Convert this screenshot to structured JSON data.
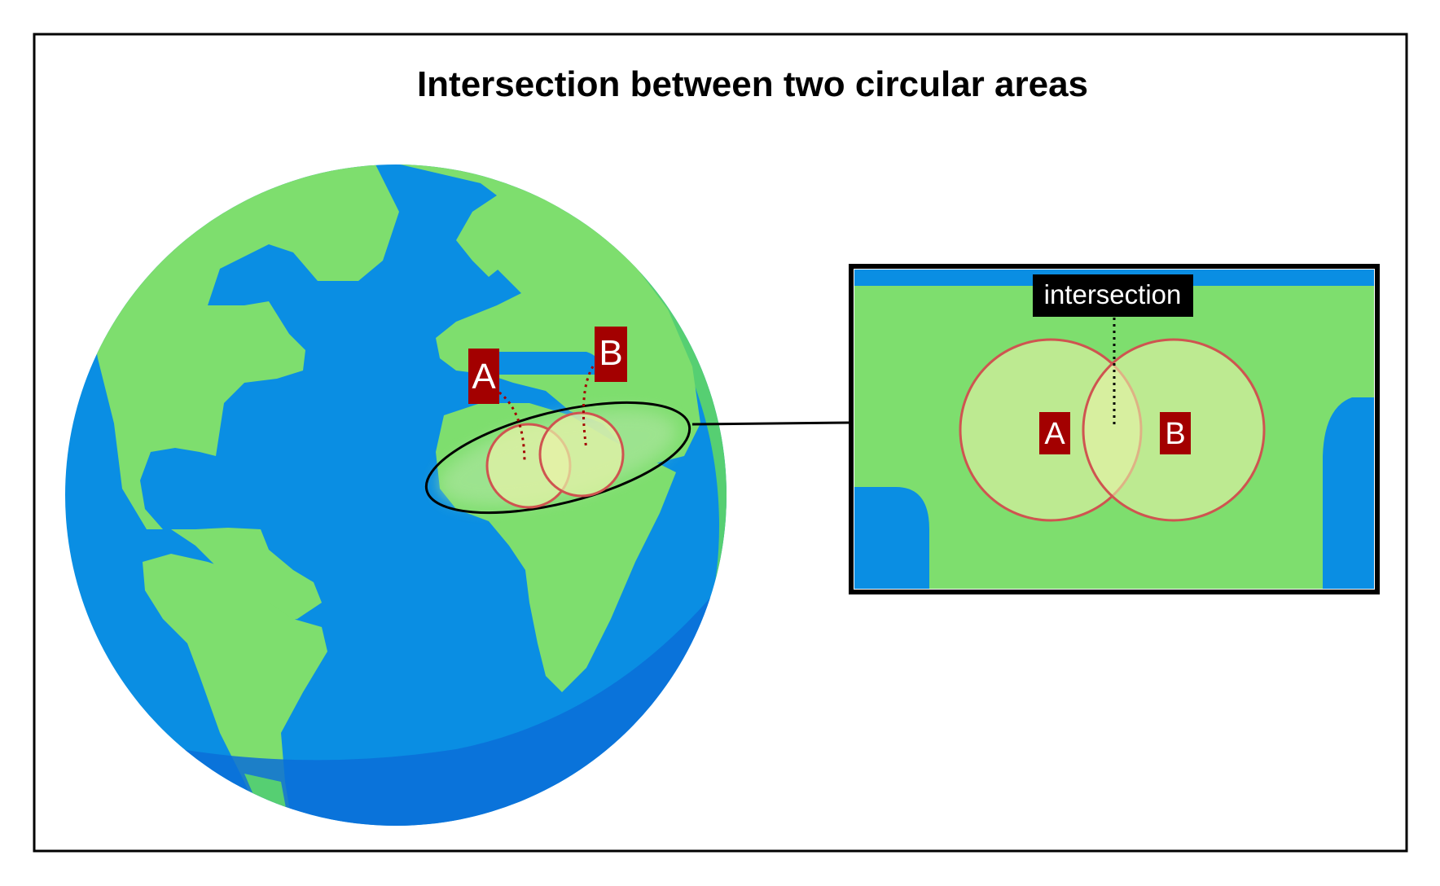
{
  "title": "Intersection between two circular areas",
  "labels": {
    "area_a": "A",
    "area_b": "B",
    "intersection": "intersection"
  },
  "colors": {
    "ocean": "#0a8ee3",
    "ocean_shadow": "#0a6fd8",
    "land": "#7ede6e",
    "land_shadow": "#56cf72",
    "circle_fill": "#e8f2a8",
    "circle_stroke": "#cf5450",
    "label_bg": "#a30000",
    "label_text": "#ffffff",
    "callout_bg": "#000000",
    "frame": "#000000"
  },
  "icons": {
    "globe": "earth-globe-icon"
  }
}
